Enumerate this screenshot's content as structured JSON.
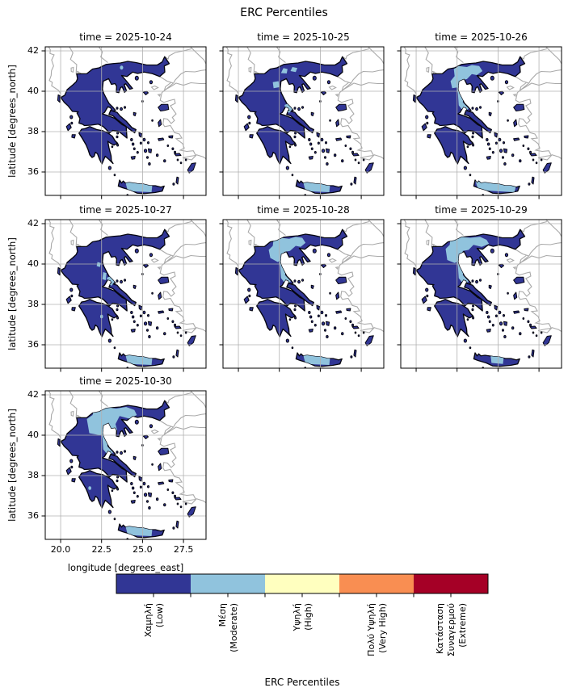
{
  "figure": {
    "title": "ERC Percentiles"
  },
  "axes": {
    "xlabel": "longitude [degrees_east]",
    "ylabel": "latitude [degrees_north]",
    "xtick_labels": [
      "20.0",
      "22.5",
      "25.0",
      "27.5"
    ],
    "ytick_labels": [
      "42",
      "40",
      "38",
      "36"
    ]
  },
  "subplots": [
    {
      "title": "time = 2025-10-24",
      "show_yticks": true,
      "show_xticks": false,
      "overlays": [
        "dot_nc",
        "crete_m"
      ]
    },
    {
      "title": "time = 2025-10-25",
      "show_yticks": false,
      "show_xticks": false,
      "overlays": [
        "north_b1",
        "north_b2",
        "north_b3",
        "pelion",
        "crete_m"
      ]
    },
    {
      "title": "time = 2025-10-26",
      "show_yticks": false,
      "show_xticks": false,
      "overlays": [
        "north_med",
        "thess_strip",
        "crete_l"
      ]
    },
    {
      "title": "time = 2025-10-27",
      "show_yticks": true,
      "show_xticks": false,
      "overlays": [
        "thess_d1",
        "thess_d2",
        "pelion",
        "pelo_dot",
        "crete_m"
      ]
    },
    {
      "title": "time = 2025-10-28",
      "show_yticks": false,
      "show_xticks": false,
      "overlays": [
        "north_lg",
        "thess_strip",
        "crete_m"
      ]
    },
    {
      "title": "time = 2025-10-29",
      "show_yticks": false,
      "show_xticks": false,
      "overlays": [
        "north_xl",
        "thess_strip",
        "crete_s"
      ]
    },
    {
      "title": "time = 2025-10-30",
      "show_yticks": true,
      "show_xticks": true,
      "overlays": [
        "north_xxl",
        "thess_strip",
        "pelo_dot2",
        "crete_m"
      ]
    }
  ],
  "colorbar": {
    "label": "ERC Percentiles"
  },
  "chart_data": {
    "type": "heatmap",
    "subtype": "categorical-choropleth-small-multiples",
    "title": "ERC Percentiles",
    "region": "Greece",
    "facets": [
      "2025-10-24",
      "2025-10-25",
      "2025-10-26",
      "2025-10-27",
      "2025-10-28",
      "2025-10-29",
      "2025-10-30"
    ],
    "facet_title_format": "time = {date}",
    "xlabel": "longitude [degrees_east]",
    "ylabel": "latitude [degrees_north]",
    "xlim": [
      19.06,
      28.88
    ],
    "ylim": [
      34.84,
      42.2
    ],
    "xticks": [
      20.0,
      22.5,
      25.0,
      27.5
    ],
    "yticks": [
      36,
      38,
      40,
      42
    ],
    "grid": true,
    "legend_position": "bottom-horizontal-colorbar",
    "levels": [
      {
        "value": 1,
        "lines": [
          "Χαμηλή",
          "(Low)"
        ],
        "label": "Χαμηλή (Low)",
        "color": "#313695"
      },
      {
        "value": 2,
        "lines": [
          "Μέση",
          "(Moderate)"
        ],
        "label": "Μέση (Moderate)",
        "color": "#90c3dd"
      },
      {
        "value": 3,
        "lines": [
          "Υψηλή",
          "(High)"
        ],
        "label": "Υψηλή (High)",
        "color": "#ffffbf"
      },
      {
        "value": 4,
        "lines": [
          "Πολύ Υψηλή",
          "(Very High)"
        ],
        "label": "Πολύ Υψηλή (Very High)",
        "color": "#f98e52"
      },
      {
        "value": 5,
        "lines": [
          "Κατάσταση",
          "Συναγερμού",
          "(Extreme)"
        ],
        "label": "Κατάσταση Συναγερμού (Extreme)",
        "color": "#a50026"
      }
    ],
    "values_by_date": {
      "2025-10-24": {
        "dominant": "Low",
        "moderate_areas": [
          "central-western Crete",
          "small spot in eastern Macedonia (~23.7E, 41.2N)"
        ]
      },
      "2025-10-25": {
        "dominant": "Low",
        "moderate_areas": [
          "patches in central Macedonia (~22.6-23.6E, 40.9-41.2N)",
          "patch west of Thermaikos (~22.1-22.5E, 40.1-40.5N)",
          "Pelion area",
          "central Crete"
        ]
      },
      "2025-10-26": {
        "dominant": "Low",
        "moderate_areas": [
          "large area of central Macedonia (~22.1-24.1E, 40.1-41.3N)",
          "strip along eastern Thessaly down to Pelion",
          "most of Crete"
        ]
      },
      "2025-10-27": {
        "dominant": "Low",
        "moderate_areas": [
          "small patches in eastern Thessaly and Pelion",
          "small spot in Arcadia (Peloponnese)",
          "central Crete"
        ]
      },
      "2025-10-28": {
        "dominant": "Low",
        "moderate_areas": [
          "large area of western/central Macedonia (~21.9-24.1E, 40.1-41.3N)",
          "eastern Thessaly strip to Pelion",
          "central Crete"
        ]
      },
      "2025-10-29": {
        "dominant": "Low",
        "moderate_areas": [
          "very large area of Macedonia (~21.8-24.45E, 40.0-41.35N)",
          "eastern Thessaly strip to Pelion",
          "central Crete (smaller)"
        ]
      },
      "2025-10-30": {
        "dominant": "Low",
        "moderate_areas": [
          "largest area of Macedonia incl. Chalkidiki base (~21.6-24.65E, 40.0-41.4N)",
          "eastern Thessaly strip to Pelion",
          "small spot in western Peloponnese",
          "central Crete"
        ]
      }
    },
    "notes": "All land is classified Low (dark blue) except listed Moderate (light blue) areas; High, Very High and Extreme classes do not appear on the maps."
  }
}
